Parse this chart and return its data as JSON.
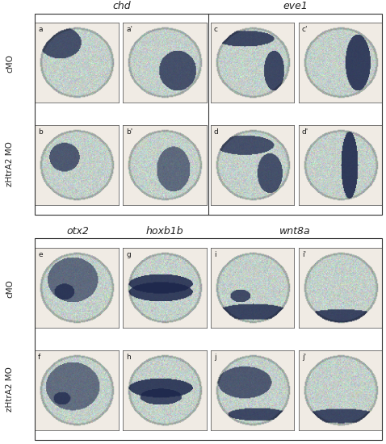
{
  "title_top_left": "chd",
  "title_top_right": "eve1",
  "title_bottom_left": "otx2",
  "title_bottom_mid": "hoxb1b",
  "title_bottom_right": "wnt8a",
  "row_labels_top": [
    "cMO",
    "zHtrA2 MO"
  ],
  "row_labels_bottom": [
    "cMO",
    "zHtrA2 MO"
  ],
  "panel_labels_top": [
    "a",
    "a'",
    "c",
    "c'",
    "b",
    "b'",
    "d",
    "d'"
  ],
  "panel_labels_bottom": [
    "e",
    "g",
    "i",
    "i'",
    "f",
    "h",
    "j",
    "j'"
  ],
  "bg_color": "#f0ede8",
  "embryo_base_color": [
    200,
    210,
    205
  ],
  "stain_color": [
    30,
    40,
    80
  ],
  "figure_bg": "#ffffff",
  "border_color": "#444444",
  "label_color": "#222222",
  "title_style": "italic",
  "font_size_title": 9,
  "font_size_label": 7,
  "font_size_panel": 7
}
